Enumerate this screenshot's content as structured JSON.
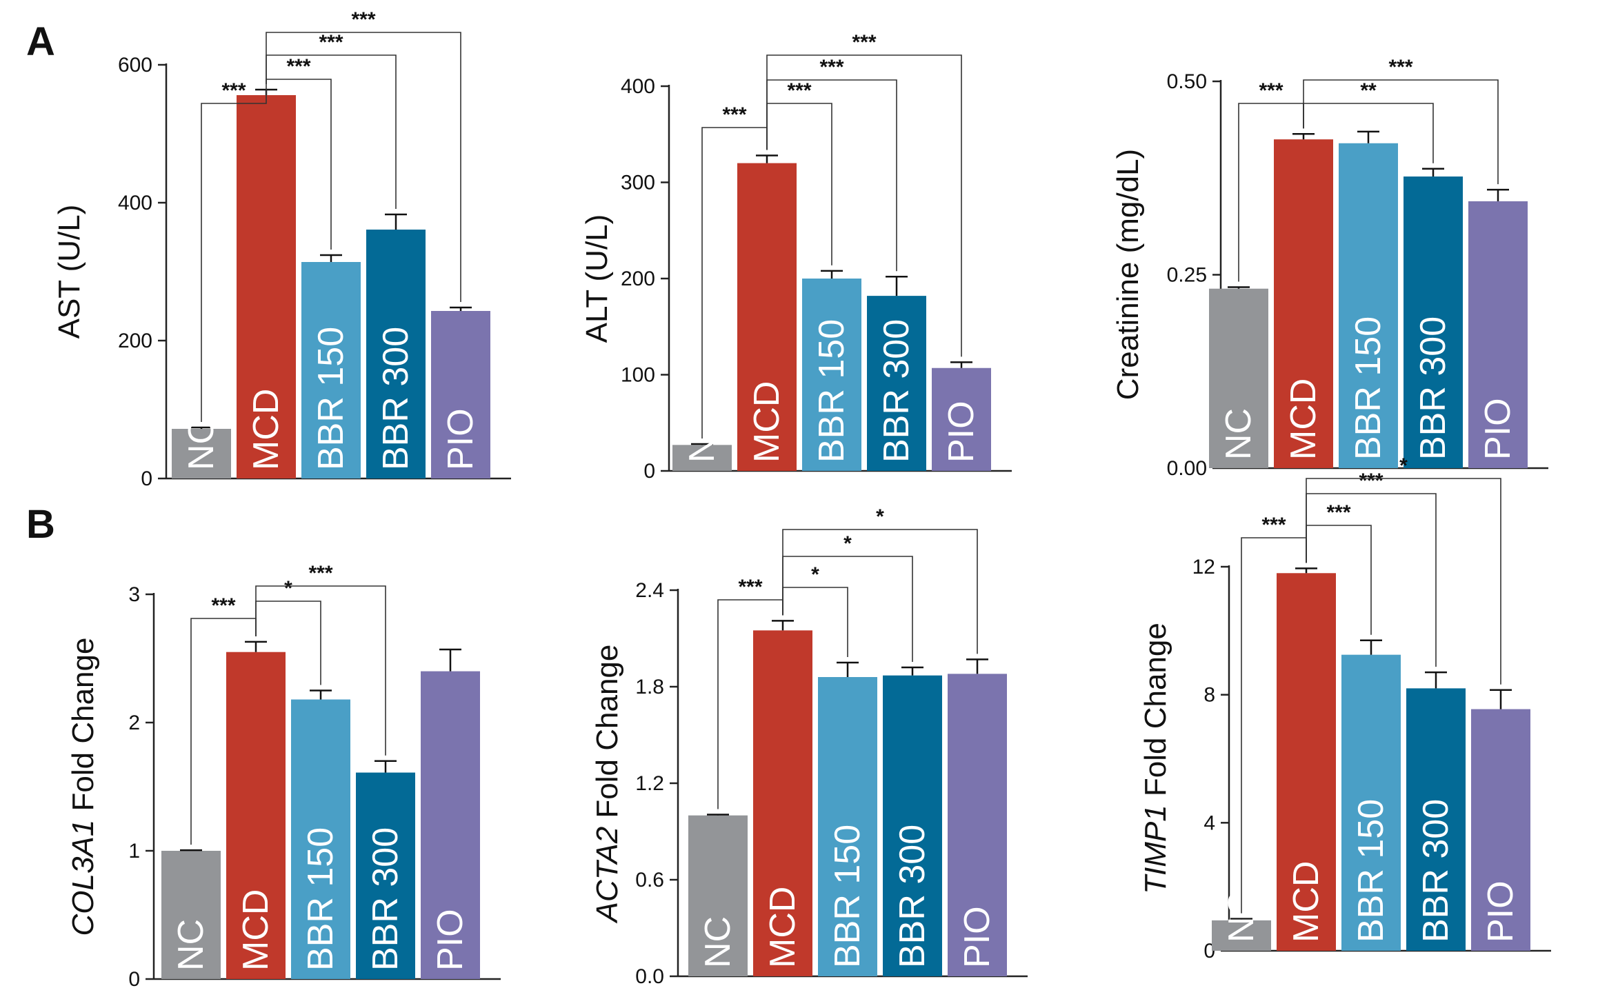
{
  "figure": {
    "panel_letters": [
      "A",
      "B"
    ]
  },
  "colors": {
    "NC": "#939598",
    "MCD": "#c0392b",
    "BBR 150": "#4a9fc6",
    "BBR 300": "#036a96",
    "PIO": "#7b74ae"
  },
  "chart_data": [
    {
      "type": "bar",
      "categories": [
        "NC",
        "MCD",
        "BBR 150",
        "BBR 300",
        "PIO"
      ],
      "values": [
        72,
        556,
        314,
        361,
        243
      ],
      "errors": [
        2,
        8,
        10,
        22,
        5
      ],
      "ylabel": "AST (U/L)",
      "ylim": [
        0,
        600
      ],
      "yticks": [
        0,
        200,
        400,
        600
      ],
      "grid": false,
      "comparisons": [
        {
          "from": "NC",
          "to": "MCD",
          "label": "***"
        },
        {
          "from": "MCD",
          "to": "BBR 150",
          "label": "***"
        },
        {
          "from": "MCD",
          "to": "BBR 300",
          "label": "***"
        },
        {
          "from": "MCD",
          "to": "PIO",
          "label": "***"
        }
      ]
    },
    {
      "type": "bar",
      "categories": [
        "NC",
        "MCD",
        "BBR 150",
        "BBR 300",
        "PIO"
      ],
      "values": [
        27,
        320,
        200,
        182,
        107
      ],
      "errors": [
        1,
        8,
        8,
        20,
        6
      ],
      "ylabel": "ALT (U/L)",
      "ylim": [
        0,
        400
      ],
      "yticks": [
        0,
        100,
        200,
        300,
        400
      ],
      "grid": false,
      "comparisons": [
        {
          "from": "NC",
          "to": "MCD",
          "label": "***"
        },
        {
          "from": "MCD",
          "to": "BBR 150",
          "label": "***"
        },
        {
          "from": "MCD",
          "to": "BBR 300",
          "label": "***"
        },
        {
          "from": "MCD",
          "to": "PIO",
          "label": "***"
        }
      ]
    },
    {
      "type": "bar",
      "categories": [
        "NC",
        "MCD",
        "BBR 150",
        "BBR 300",
        "PIO"
      ],
      "values": [
        0.232,
        0.425,
        0.42,
        0.377,
        0.345
      ],
      "errors": [
        0.002,
        0.007,
        0.015,
        0.01,
        0.015
      ],
      "ylabel": "Creatinine  (mg/dL)",
      "ylim": [
        0,
        0.5
      ],
      "yticks": [
        "0.00",
        "0.25",
        "0.50"
      ],
      "grid": false,
      "comparisons": [
        {
          "from": "NC",
          "to": "MCD",
          "label": "***"
        },
        {
          "from": "MCD",
          "to": "BBR 300",
          "label": "**"
        },
        {
          "from": "MCD",
          "to": "PIO",
          "label": "***"
        }
      ]
    },
    {
      "type": "bar",
      "categories": [
        "NC",
        "MCD",
        "BBR 150",
        "BBR 300",
        "PIO"
      ],
      "values": [
        1.0,
        2.55,
        2.18,
        1.61,
        2.4
      ],
      "errors": [
        0.005,
        0.08,
        0.07,
        0.09,
        0.17
      ],
      "ylabel_italic": "COL3A1",
      "ylabel": " Fold Change",
      "ylim": [
        0,
        3
      ],
      "yticks": [
        0,
        1,
        2,
        3
      ],
      "grid": false,
      "comparisons": [
        {
          "from": "NC",
          "to": "MCD",
          "label": "***"
        },
        {
          "from": "MCD",
          "to": "BBR 150",
          "label": "*"
        },
        {
          "from": "MCD",
          "to": "BBR 300",
          "label": "***"
        }
      ]
    },
    {
      "type": "bar",
      "categories": [
        "NC",
        "MCD",
        "BBR 150",
        "BBR 300",
        "PIO"
      ],
      "values": [
        1.0,
        2.15,
        1.86,
        1.87,
        1.88
      ],
      "errors": [
        0.005,
        0.06,
        0.09,
        0.05,
        0.09
      ],
      "ylabel_italic": "ACTA2",
      "ylabel": " Fold Change",
      "ylim": [
        0,
        2.4
      ],
      "yticks": [
        "0.0",
        "0.6",
        "1.2",
        "1.8",
        "2.4"
      ],
      "grid": false,
      "comparisons": [
        {
          "from": "NC",
          "to": "MCD",
          "label": "***"
        },
        {
          "from": "MCD",
          "to": "BBR 150",
          "label": "*"
        },
        {
          "from": "MCD",
          "to": "BBR 300",
          "label": "*"
        },
        {
          "from": "MCD",
          "to": "PIO",
          "label": "*"
        }
      ]
    },
    {
      "type": "bar",
      "categories": [
        "NC",
        "MCD",
        "BBR 150",
        "BBR 300",
        "PIO"
      ],
      "values": [
        0.95,
        11.8,
        9.25,
        8.2,
        7.55
      ],
      "errors": [
        0.05,
        0.15,
        0.45,
        0.5,
        0.6
      ],
      "ylabel_italic": "TIMP1",
      "ylabel": " Fold Change",
      "ylim": [
        0,
        12
      ],
      "yticks": [
        0,
        4,
        8,
        12
      ],
      "grid": false,
      "comparisons": [
        {
          "from": "NC",
          "to": "MCD",
          "label": "***"
        },
        {
          "from": "MCD",
          "to": "BBR 150",
          "label": "***"
        },
        {
          "from": "MCD",
          "to": "BBR 300",
          "label": "***"
        },
        {
          "from": "MCD",
          "to": "PIO",
          "label": "*"
        }
      ]
    }
  ]
}
